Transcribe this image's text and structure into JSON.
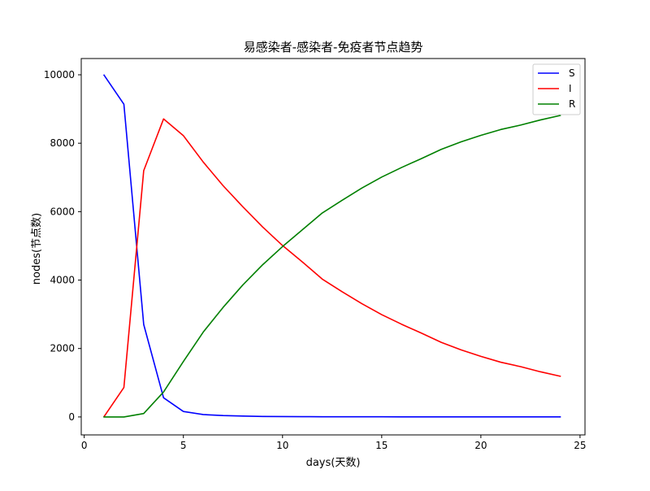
{
  "chart_data": {
    "type": "line",
    "title": "易感染者-感染者-免疫者节点趋势",
    "xlabel": "days(天数)",
    "ylabel": "nodes(节点数)",
    "xlim": [
      -0.15,
      25.25
    ],
    "ylim": [
      -525,
      10475
    ],
    "x_ticks": [
      0,
      5,
      10,
      15,
      20,
      25
    ],
    "y_ticks": [
      0,
      2000,
      4000,
      6000,
      8000,
      10000
    ],
    "legend_position": "upper right",
    "grid": false,
    "x": [
      1,
      2,
      3,
      4,
      5,
      6,
      7,
      8,
      9,
      10,
      11,
      12,
      13,
      14,
      15,
      16,
      17,
      18,
      19,
      20,
      21,
      22,
      23,
      24
    ],
    "series": [
      {
        "name": "S",
        "color": "#0000ff",
        "values": [
          9990,
          9140,
          2700,
          560,
          160,
          70,
          40,
          25,
          15,
          10,
          8,
          6,
          5,
          4,
          4,
          3,
          3,
          3,
          3,
          3,
          3,
          3,
          3,
          3
        ]
      },
      {
        "name": "I",
        "color": "#ff0000",
        "values": [
          10,
          860,
          7200,
          8710,
          8220,
          7450,
          6760,
          6140,
          5550,
          5010,
          4530,
          4030,
          3660,
          3310,
          2990,
          2710,
          2450,
          2180,
          1960,
          1770,
          1600,
          1470,
          1320,
          1190
        ]
      },
      {
        "name": "R",
        "color": "#008000",
        "values": [
          0,
          0,
          100,
          730,
          1620,
          2480,
          3200,
          3860,
          4450,
          4980,
          5470,
          5960,
          6330,
          6690,
          7010,
          7290,
          7550,
          7820,
          8040,
          8230,
          8400,
          8530,
          8680,
          8810
        ]
      }
    ]
  }
}
